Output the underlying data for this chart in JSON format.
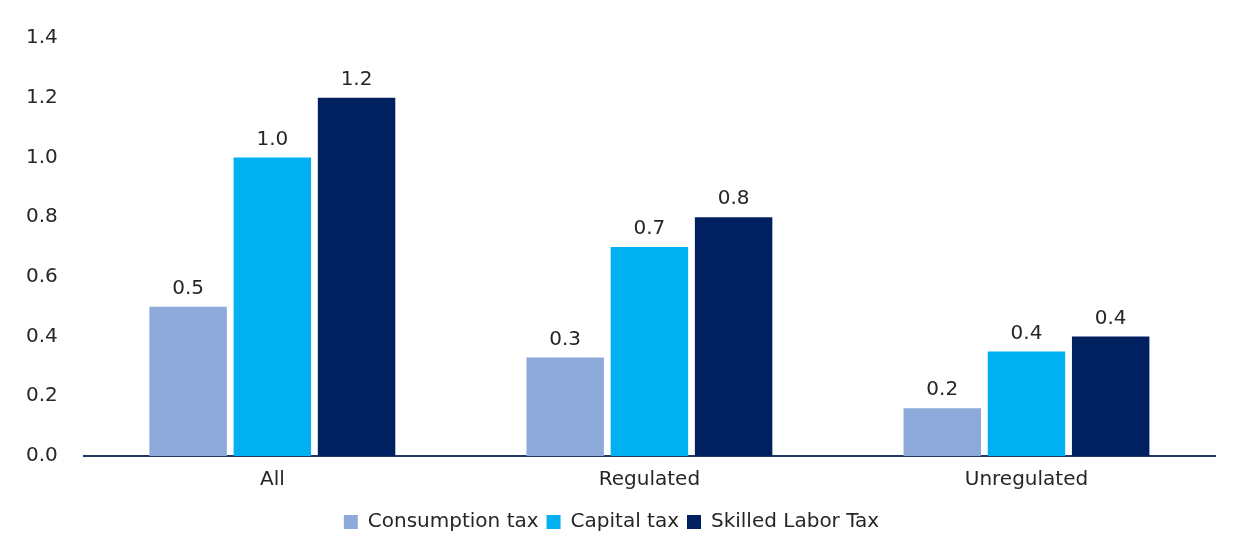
{
  "chart_data": {
    "type": "bar",
    "categories": [
      "All",
      "Regulated",
      "Unregulated"
    ],
    "series": [
      {
        "name": "Consumption tax",
        "color": "#8eaadb",
        "values": [
          0.5,
          0.33,
          0.16
        ],
        "value_labels": [
          "0.5",
          "0.3",
          "0.2"
        ]
      },
      {
        "name": "Capital tax",
        "color": "#00b0f0",
        "values": [
          1.0,
          0.7,
          0.35
        ],
        "value_labels": [
          "1.0",
          "0.7",
          "0.4"
        ]
      },
      {
        "name": "Skilled Labor Tax",
        "color": "#002060",
        "values": [
          1.2,
          0.8,
          0.4
        ],
        "value_labels": [
          "1.2",
          "0.8",
          "0.4"
        ]
      }
    ],
    "ylim": [
      0,
      1.4
    ],
    "yticks": [
      {
        "value": 0,
        "label": "0.0"
      },
      {
        "value": 0.2,
        "label": "0.2"
      },
      {
        "value": 0.4,
        "label": "0.4"
      },
      {
        "value": 0.6,
        "label": "0.6"
      },
      {
        "value": 0.8,
        "label": "0.8"
      },
      {
        "value": 1.0,
        "label": "1.0"
      },
      {
        "value": 1.2,
        "label": "1.2"
      },
      {
        "value": 1.4,
        "label": "1.4"
      }
    ],
    "grid": false,
    "legend": "bottom"
  }
}
